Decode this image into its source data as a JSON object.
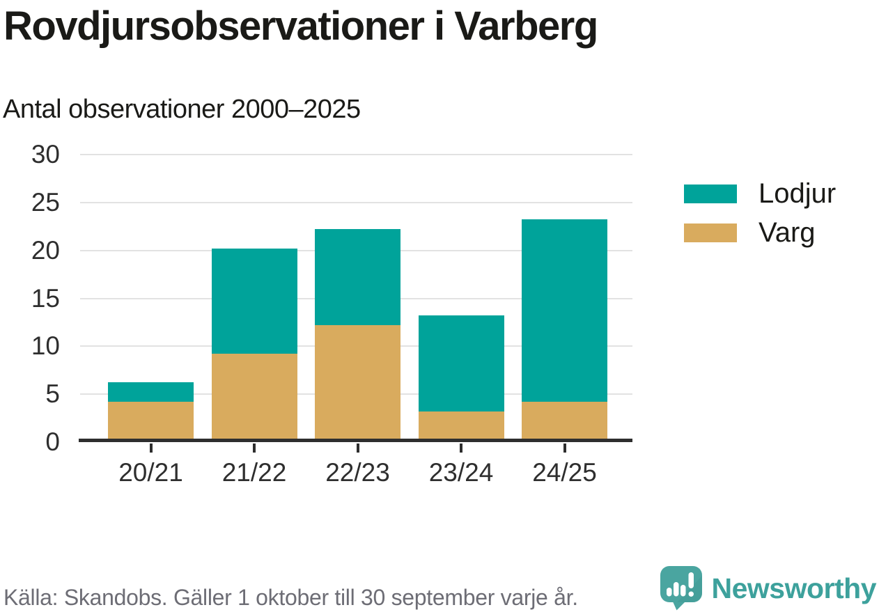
{
  "header": {
    "title": "Rovdjursobservationer i Varberg",
    "subtitle": "Antal observationer 2000–2025"
  },
  "chart_data": {
    "type": "bar",
    "stacked": true,
    "title": "Rovdjursobservationer i Varberg",
    "subtitle": "Antal observationer 2000–2025",
    "categories": [
      "20/21",
      "21/22",
      "22/23",
      "23/24",
      "24/25"
    ],
    "series": [
      {
        "name": "Lodjur",
        "color": "#00a39a",
        "values": [
          2,
          11,
          10,
          10,
          19
        ]
      },
      {
        "name": "Varg",
        "color": "#d9ab5e",
        "values": [
          4,
          9,
          12,
          3,
          4
        ]
      }
    ],
    "stack_order_bottom_to_top": [
      "Varg",
      "Lodjur"
    ],
    "totals": [
      6,
      20,
      22,
      13,
      23
    ],
    "xlabel": "",
    "ylabel": "",
    "ylim": [
      0,
      30
    ],
    "yticks": [
      0,
      5,
      10,
      15,
      20,
      25,
      30
    ],
    "grid": "horizontal",
    "legend_position": "right"
  },
  "footer": {
    "source": "Källa: Skandobs. Gäller 1 oktober till 30 september varje år.",
    "brand": "Newsworthy"
  },
  "icons": {
    "logo": "newsworthy-speech-bubble-chart-icon"
  },
  "colors": {
    "lodjur": "#00a39a",
    "varg": "#d9ab5e",
    "axis": "#2e2e2e",
    "gridline": "#e2e2e2",
    "text_dark": "#1a1a17",
    "source_text": "#6d6d75",
    "brand_teal": "#3da19c",
    "logo_bubble": "#4aa5a0"
  }
}
